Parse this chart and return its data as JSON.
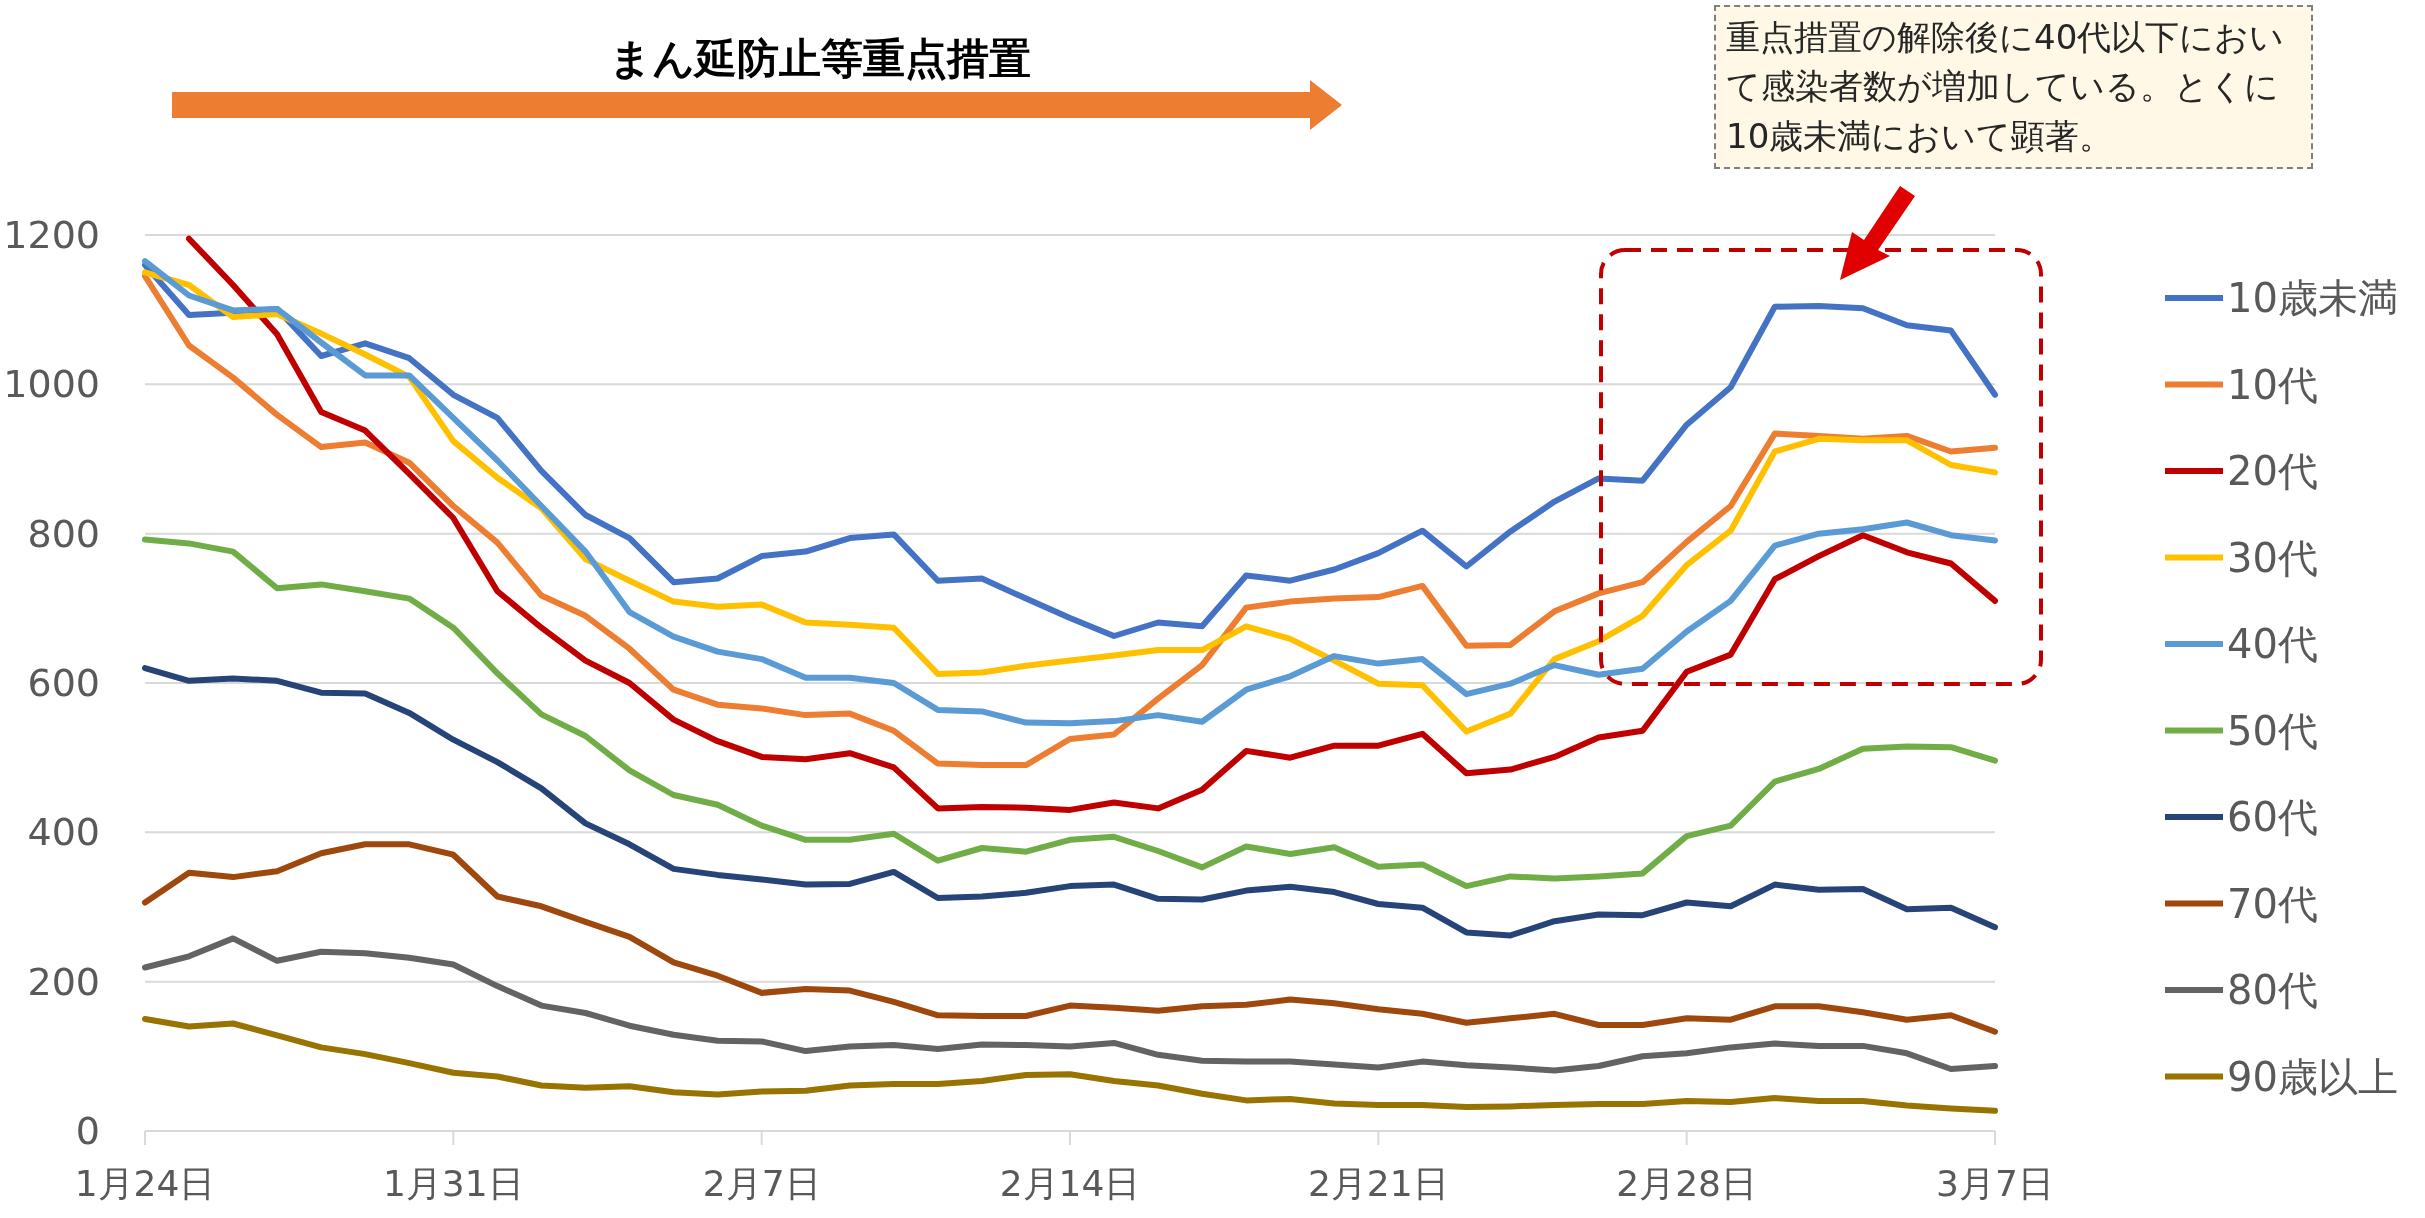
{
  "chart_data": {
    "type": "line",
    "annotations": [
      "まん延防止等重点措置",
      "重点措置の解除後に40代以下において感染者数が増加している。とくに10歳未満において顕著。"
    ],
    "x": [
      "--01-24",
      "--01-25",
      "--01-26",
      "--01-27",
      "--01-28",
      "--01-29",
      "--01-30",
      "--01-31",
      "--02-01",
      "--02-02",
      "--02-03",
      "--02-04",
      "--02-05",
      "--02-06",
      "--02-07",
      "--02-08",
      "--02-09",
      "--02-10",
      "--02-11",
      "--02-12",
      "--02-13",
      "--02-14",
      "--02-15",
      "--02-16",
      "--02-17",
      "--02-18",
      "--02-19",
      "--02-20",
      "--02-21",
      "--02-22",
      "--02-23",
      "--02-24",
      "--02-25",
      "--02-26",
      "--02-27",
      "--02-28",
      "--03-01",
      "--03-02",
      "--03-03",
      "--03-04",
      "--03-05",
      "--03-06",
      "--03-07"
    ],
    "series": [
      {
        "name": "10歳未満",
        "color": "#4472c4",
        "values": [
          1160,
          1093,
          1096,
          1101,
          1038,
          1055,
          1035,
          986,
          955,
          884,
          825,
          794,
          735,
          740,
          770,
          776,
          794,
          799,
          737,
          740,
          713,
          687,
          663,
          681,
          676,
          744,
          737,
          752,
          774,
          804,
          756,
          803,
          843,
          874,
          871,
          946,
          996,
          1104,
          1105,
          1102,
          1079,
          1072,
          986
        ]
      },
      {
        "name": "10代",
        "color": "#ed7d31",
        "values": [
          1145,
          1052,
          1009,
          959,
          916,
          922,
          895,
          837,
          788,
          717,
          690,
          646,
          591,
          571,
          566,
          557,
          559,
          536,
          492,
          490,
          490,
          525,
          531,
          579,
          624,
          701,
          709,
          713,
          715,
          730,
          650,
          651,
          696,
          720,
          735,
          789,
          837,
          934,
          931,
          927,
          931,
          910,
          915
        ]
      },
      {
        "name": "20代",
        "color": "#c00000",
        "values": [
          null,
          1195,
          1133,
          1067,
          963,
          938,
          880,
          821,
          723,
          674,
          630,
          600,
          551,
          522,
          501,
          498,
          506,
          487,
          432,
          434,
          433,
          430,
          440,
          432,
          457,
          509,
          500,
          516,
          516,
          532,
          479,
          484,
          501,
          527,
          536,
          615,
          638,
          739,
          770,
          798,
          775,
          760,
          710
        ]
      },
      {
        "name": "30代",
        "color": "#ffc000",
        "values": [
          1150,
          1133,
          1090,
          1094,
          1068,
          1040,
          1010,
          924,
          875,
          834,
          766,
          737,
          709,
          702,
          705,
          681,
          678,
          674,
          612,
          614,
          623,
          630,
          637,
          644,
          644,
          676,
          659,
          630,
          599,
          597,
          535,
          559,
          632,
          656,
          690,
          758,
          804,
          910,
          927,
          925,
          925,
          892,
          882
        ]
      },
      {
        "name": "40代",
        "color": "#5b9bd5",
        "values": [
          1165,
          1119,
          1099,
          1101,
          1056,
          1012,
          1012,
          955,
          898,
          837,
          776,
          695,
          662,
          642,
          632,
          607,
          607,
          600,
          564,
          562,
          547,
          546,
          549,
          557,
          548,
          591,
          609,
          636,
          626,
          632,
          585,
          599,
          624,
          611,
          619,
          669,
          710,
          784,
          800,
          806,
          815,
          798,
          791
        ]
      },
      {
        "name": "50代",
        "color": "#70ad47",
        "values": [
          792,
          787,
          776,
          727,
          732,
          723,
          713,
          674,
          613,
          558,
          529,
          483,
          450,
          437,
          409,
          390,
          390,
          398,
          362,
          379,
          374,
          390,
          394,
          375,
          353,
          381,
          371,
          380,
          354,
          357,
          328,
          341,
          338,
          341,
          345,
          395,
          409,
          468,
          485,
          512,
          515,
          514,
          496
        ]
      },
      {
        "name": "60代",
        "color": "#264478",
        "values": [
          620,
          603,
          606,
          603,
          587,
          586,
          560,
          524,
          494,
          459,
          412,
          384,
          351,
          343,
          337,
          330,
          331,
          347,
          312,
          314,
          319,
          328,
          330,
          311,
          310,
          322,
          327,
          320,
          304,
          299,
          266,
          262,
          281,
          290,
          289,
          306,
          301,
          330,
          323,
          324,
          297,
          299,
          273
        ]
      },
      {
        "name": "70代",
        "color": "#9e480e",
        "values": [
          306,
          346,
          340,
          348,
          372,
          384,
          384,
          370,
          314,
          301,
          280,
          260,
          226,
          208,
          185,
          190,
          188,
          173,
          155,
          154,
          154,
          168,
          165,
          161,
          167,
          169,
          176,
          171,
          163,
          157,
          145,
          151,
          157,
          142,
          142,
          151,
          149,
          167,
          167,
          159,
          149,
          155,
          133
        ]
      },
      {
        "name": "80代",
        "color": "#636363",
        "values": [
          219,
          234,
          258,
          228,
          240,
          238,
          232,
          223,
          194,
          168,
          158,
          141,
          129,
          121,
          120,
          107,
          113,
          115,
          110,
          116,
          115,
          113,
          118,
          102,
          94,
          93,
          93,
          89,
          85,
          93,
          88,
          85,
          81,
          87,
          100,
          104,
          112,
          117,
          114,
          114,
          104,
          83,
          87
        ]
      },
      {
        "name": "90歳以上",
        "color": "#997300",
        "values": [
          150,
          140,
          144,
          128,
          112,
          103,
          91,
          78,
          73,
          61,
          58,
          60,
          52,
          49,
          53,
          54,
          61,
          63,
          63,
          67,
          75,
          76,
          67,
          61,
          50,
          41,
          43,
          37,
          35,
          35,
          32,
          33,
          35,
          36,
          36,
          40,
          39,
          44,
          40,
          40,
          34,
          30,
          27
        ]
      }
    ],
    "xlim": [
      "--01-24",
      "--03-07"
    ],
    "xticks": [
      {
        "value": "--01-24",
        "label": "1月24日"
      },
      {
        "value": "--01-31",
        "label": "1月31日"
      },
      {
        "value": "--02-07",
        "label": "2月7日"
      },
      {
        "value": "--02-14",
        "label": "2月14日"
      },
      {
        "value": "--02-21",
        "label": "2月21日"
      },
      {
        "value": "--02-28",
        "label": "2月28日"
      },
      {
        "value": "--03-07",
        "label": "3月7日"
      }
    ],
    "ylim": [
      0,
      1200
    ],
    "yticks": [
      0,
      200,
      400,
      600,
      800,
      1000,
      1200
    ],
    "grid": "y",
    "legend": "right",
    "marker": "none",
    "line_style": "solid"
  }
}
